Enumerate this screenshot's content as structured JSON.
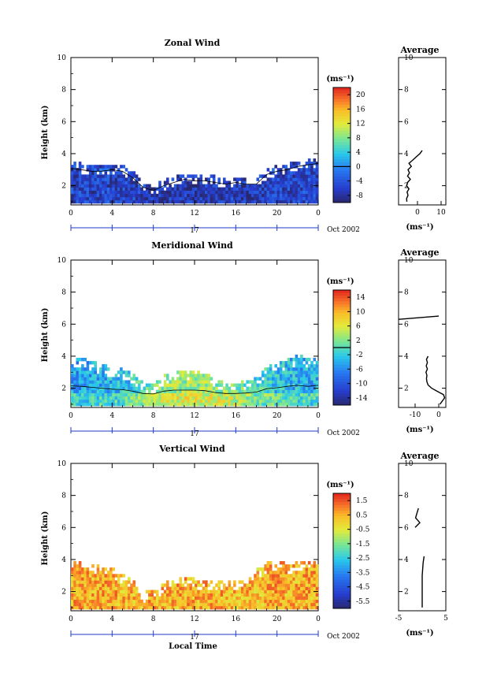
{
  "chart_data": [
    {
      "type": "heatmap",
      "title": "Zonal Wind",
      "ylabel": "Height (km)",
      "xlabel": "",
      "xlim": [
        0,
        24
      ],
      "ylim": [
        0.8,
        10
      ],
      "xticks": [
        "0",
        "4",
        "8",
        "12",
        "16",
        "20",
        "0"
      ],
      "yticks": [
        "2",
        "4",
        "6",
        "8",
        "10"
      ],
      "date_label": "17",
      "month_label": "Oct 2002",
      "colorbar": {
        "unit_label": "(ms⁻¹)",
        "tick_labels": [
          "20",
          "16",
          "12",
          "8",
          "4",
          "0",
          "-4",
          "-8"
        ],
        "range": [
          -10,
          22
        ],
        "contour_at": 0
      },
      "top_km_by_hour": [
        3.4,
        3.3,
        3.2,
        3.2,
        3.3,
        3.2,
        2.8,
        2.2,
        2.0,
        2.3,
        2.5,
        2.7,
        2.6,
        2.6,
        2.5,
        2.4,
        2.5,
        2.4,
        2.4,
        3.0,
        3.2,
        3.3,
        3.5,
        3.6,
        3.7
      ],
      "field_mean_by_hour": [
        -6,
        -6,
        -6,
        -5,
        -6,
        -6,
        -6,
        -6,
        -7,
        -7,
        -7,
        -7,
        -7,
        -7,
        -7,
        -6,
        -6,
        -7,
        -7,
        -6,
        -6,
        -6,
        -6,
        -5,
        -6
      ],
      "profile": {
        "title": "Average",
        "xlabel": "(ms⁻¹)",
        "xticks": [
          "0",
          "10"
        ],
        "xlim": [
          -8,
          12
        ],
        "height_km": [
          1.0,
          1.2,
          1.4,
          1.6,
          1.8,
          2.0,
          2.2,
          2.4,
          2.6,
          2.8,
          3.0,
          3.2,
          3.4,
          3.6,
          3.8,
          4.0,
          4.2
        ],
        "value_ms": [
          -4.5,
          -4.6,
          -4.0,
          -4.4,
          -3.6,
          -4.6,
          -4.2,
          -3.0,
          -4.2,
          -3.4,
          -4.0,
          -2.6,
          -3.6,
          -2.0,
          -0.5,
          1.0,
          2.0
        ]
      }
    },
    {
      "type": "heatmap",
      "title": "Meridional Wind",
      "ylabel": "Height (km)",
      "xlabel": "",
      "xlim": [
        0,
        24
      ],
      "ylim": [
        0.8,
        10
      ],
      "xticks": [
        "0",
        "4",
        "8",
        "12",
        "16",
        "20",
        "0"
      ],
      "yticks": [
        "2",
        "4",
        "6",
        "8",
        "10"
      ],
      "date_label": "17",
      "month_label": "Oct 2002",
      "colorbar": {
        "unit_label": "(ms⁻¹)",
        "tick_labels": [
          "14",
          "10",
          "6",
          "2",
          "-2",
          "-6",
          "-10",
          "-14"
        ],
        "range": [
          -16,
          16
        ],
        "contour_at": 0
      },
      "top_km_by_hour": [
        3.9,
        3.8,
        3.6,
        3.4,
        3.2,
        3.1,
        2.8,
        2.3,
        2.2,
        2.8,
        3.0,
        3.0,
        3.0,
        2.9,
        2.5,
        2.3,
        2.3,
        2.4,
        2.6,
        3.3,
        3.5,
        3.8,
        4.0,
        3.8,
        4.0
      ],
      "field_mean_by_hour": [
        -5,
        -5,
        -4,
        -4,
        -4,
        -3,
        -2,
        0,
        1,
        2,
        3,
        3,
        3,
        3,
        2,
        2,
        1,
        0,
        -1,
        -2,
        -3,
        -3,
        -4,
        -4,
        -4
      ],
      "profile": {
        "title": "Average",
        "xlabel": "(ms⁻¹)",
        "xticks": [
          "-10",
          "0"
        ],
        "xlim": [
          -17,
          3
        ],
        "height_km": [
          1.0,
          1.2,
          1.4,
          1.6,
          1.8,
          2.0,
          2.2,
          2.4,
          2.6,
          2.8,
          3.0,
          3.2,
          3.4,
          3.6,
          3.8,
          4.0
        ],
        "value_ms": [
          0.5,
          1.5,
          2.5,
          2.0,
          -0.5,
          -3.0,
          -4.5,
          -5.0,
          -5.2,
          -5.0,
          -5.4,
          -4.8,
          -5.3,
          -4.8,
          -5.2,
          -4.5
        ],
        "upper_height_km": [
          6.3,
          6.5
        ],
        "upper_value_ms": [
          -17,
          0
        ]
      }
    },
    {
      "type": "heatmap",
      "title": "Vertical Wind",
      "ylabel": "Height (km)",
      "xlabel": "Local Time",
      "xlim": [
        0,
        24
      ],
      "ylim": [
        0.8,
        10
      ],
      "xticks": [
        "0",
        "4",
        "8",
        "12",
        "16",
        "20",
        "0"
      ],
      "yticks": [
        "2",
        "4",
        "6",
        "8",
        "10"
      ],
      "date_label": "17",
      "month_label": "Oct 2002",
      "colorbar": {
        "unit_label": "(ms⁻¹)",
        "tick_labels": [
          "1.5",
          "0.5",
          "-0.5",
          "-1.5",
          "-2.5",
          "-3.5",
          "-4.5",
          "-5.5"
        ],
        "range": [
          -6,
          2
        ]
      },
      "top_km_by_hour": [
        3.7,
        3.8,
        3.6,
        3.5,
        3.4,
        3.0,
        2.6,
        1.9,
        2.1,
        2.5,
        2.9,
        2.8,
        2.7,
        2.6,
        2.6,
        2.5,
        2.6,
        2.5,
        3.4,
        3.8,
        3.9,
        3.6,
        3.8,
        4.0,
        3.8
      ],
      "field_mean_by_hour": [
        0.5,
        0.6,
        0.4,
        0.5,
        0.6,
        0.4,
        0.3,
        0.4,
        0.5,
        0.4,
        0.5,
        0.5,
        0.4,
        0.5,
        0.4,
        0.5,
        0.3,
        0.4,
        0.2,
        0.5,
        0.6,
        0.4,
        0.5,
        0.6,
        0.5
      ],
      "profile": {
        "title": "Average",
        "xlabel": "(ms⁻¹)",
        "xticks": [
          "-5",
          "5"
        ],
        "xlim": [
          -5,
          5
        ],
        "height_km": [
          1.0,
          1.4,
          1.8,
          2.2,
          2.6,
          3.0,
          3.4,
          3.8,
          4.2
        ],
        "value_ms": [
          0,
          0,
          0,
          0,
          0,
          0,
          0.1,
          0.2,
          0.4
        ],
        "upper_height_km": [
          6.0,
          6.3,
          6.6,
          7.2
        ],
        "upper_value_ms": [
          -1.5,
          -0.5,
          -1.4,
          -0.8
        ]
      }
    }
  ]
}
